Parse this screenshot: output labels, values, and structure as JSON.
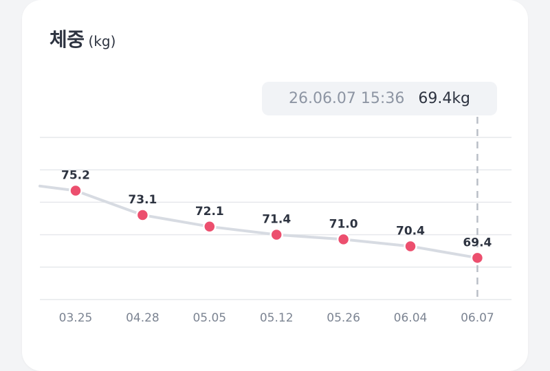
{
  "header": {
    "title": "체중",
    "unit": "(kg)"
  },
  "tooltip": {
    "datetime": "26.06.07 15:36",
    "value": "69.4kg"
  },
  "colors": {
    "point": "#ec4f6e",
    "line": "#d7dbe2",
    "grid": "#e6e8ec",
    "guide": "#b9bec7"
  },
  "chart_data": {
    "type": "line",
    "categories": [
      "03.25",
      "04.28",
      "05.05",
      "05.12",
      "05.26",
      "06.04",
      "06.07"
    ],
    "values": [
      75.2,
      73.1,
      72.1,
      71.4,
      71.0,
      70.4,
      69.4
    ],
    "value_labels": [
      "75.2",
      "73.1",
      "72.1",
      "71.4",
      "71.0",
      "70.4",
      "69.4"
    ],
    "leading_value": 75.6,
    "selected_index": 6,
    "ylim": [
      65.8,
      79.8
    ],
    "grid": true,
    "gridline_values": [
      65.8,
      68.6,
      71.4,
      74.2,
      77.0,
      79.8
    ]
  }
}
